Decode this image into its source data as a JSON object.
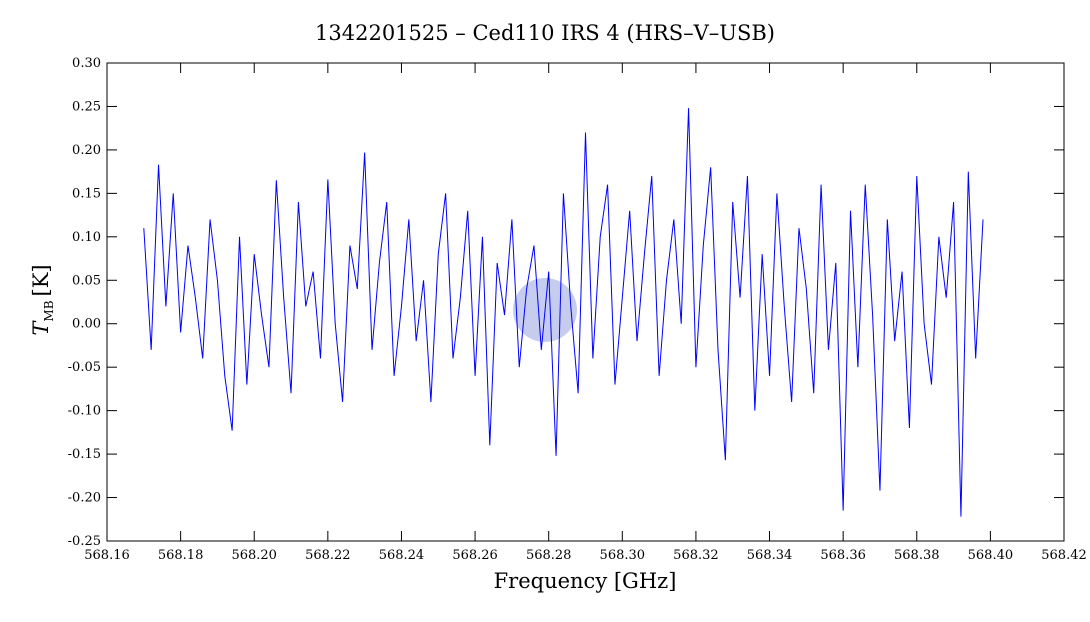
{
  "chart_data": {
    "type": "line",
    "title": "1342201525 – Ced110 IRS 4 (HRS–V–USB)",
    "xlabel": "Frequency [GHz]",
    "ylabel": {
      "symbol": "T",
      "subscript": "MB",
      "unit": "[K]"
    },
    "xlim": [
      568.16,
      568.42
    ],
    "ylim": [
      -0.25,
      0.3
    ],
    "xticks": [
      568.16,
      568.18,
      {
        "value": 568.2,
        "label": "568.20"
      },
      568.22,
      568.24,
      568.26,
      568.28,
      {
        "value": 568.3,
        "label": "568.30"
      },
      568.32,
      568.34,
      568.36,
      568.38,
      {
        "value": 568.4,
        "label": "568.40"
      },
      568.42
    ],
    "yticks": [
      -0.25,
      {
        "value": -0.2,
        "label": "-0.20"
      },
      -0.15,
      {
        "value": -0.1,
        "label": "-0.10"
      },
      -0.05,
      {
        "value": 0,
        "label": "0.00"
      },
      0.05,
      {
        "value": 0.1,
        "label": "0.10"
      },
      0.15,
      {
        "value": 0.2,
        "label": "0.20"
      },
      0.25,
      {
        "value": 0.3,
        "label": "0.30"
      }
    ],
    "x": [
      568.17,
      568.172,
      568.174,
      568.176,
      568.178,
      568.18,
      568.182,
      568.184,
      568.186,
      568.188,
      568.19,
      568.192,
      568.194,
      568.196,
      568.198,
      568.2,
      568.202,
      568.204,
      568.206,
      568.208,
      568.21,
      568.212,
      568.214,
      568.216,
      568.218,
      568.22,
      568.222,
      568.224,
      568.226,
      568.228,
      568.23,
      568.232,
      568.234,
      568.236,
      568.238,
      568.24,
      568.242,
      568.244,
      568.246,
      568.248,
      568.25,
      568.252,
      568.254,
      568.256,
      568.258,
      568.26,
      568.262,
      568.264,
      568.266,
      568.268,
      568.27,
      568.272,
      568.274,
      568.276,
      568.278,
      568.28,
      568.282,
      568.284,
      568.286,
      568.288,
      568.29,
      568.292,
      568.294,
      568.296,
      568.298,
      568.3,
      568.302,
      568.304,
      568.306,
      568.308,
      568.31,
      568.312,
      568.314,
      568.316,
      568.318,
      568.32,
      568.322,
      568.324,
      568.326,
      568.328,
      568.33,
      568.332,
      568.334,
      568.336,
      568.338,
      568.34,
      568.342,
      568.344,
      568.346,
      568.348,
      568.35,
      568.352,
      568.354,
      568.356,
      568.358,
      568.36,
      568.362,
      568.364,
      568.366,
      568.368,
      568.37,
      568.372,
      568.374,
      568.376,
      568.378,
      568.38,
      568.382,
      568.384,
      568.386,
      568.388,
      568.39,
      568.392,
      568.394,
      568.396,
      568.398
    ],
    "series": [
      {
        "color": "#0000ff",
        "values": [
          0.11,
          -0.03,
          0.183,
          0.02,
          0.15,
          -0.01,
          0.09,
          0.03,
          -0.04,
          0.12,
          0.05,
          -0.06,
          -0.123,
          0.1,
          -0.07,
          0.08,
          0.01,
          -0.05,
          0.165,
          0.03,
          -0.08,
          0.14,
          0.02,
          0.06,
          -0.04,
          0.166,
          0.0,
          -0.09,
          0.09,
          0.04,
          0.197,
          -0.03,
          0.07,
          0.14,
          -0.06,
          0.02,
          0.12,
          -0.02,
          0.05,
          -0.09,
          0.08,
          0.15,
          -0.04,
          0.03,
          0.13,
          -0.06,
          0.1,
          -0.14,
          0.07,
          0.01,
          0.12,
          -0.05,
          0.04,
          0.09,
          -0.03,
          0.06,
          -0.152,
          0.15,
          0.02,
          -0.08,
          0.22,
          -0.04,
          0.1,
          0.16,
          -0.07,
          0.03,
          0.13,
          -0.02,
          0.08,
          0.17,
          -0.06,
          0.05,
          0.12,
          0.0,
          0.248,
          -0.05,
          0.09,
          0.18,
          -0.03,
          -0.157,
          0.14,
          0.03,
          0.17,
          -0.1,
          0.08,
          -0.06,
          0.15,
          0.02,
          -0.09,
          0.11,
          0.04,
          -0.08,
          0.16,
          -0.03,
          0.07,
          -0.215,
          0.13,
          -0.05,
          0.16,
          0.01,
          -0.192,
          0.12,
          -0.02,
          0.06,
          -0.12,
          0.17,
          0.0,
          -0.07,
          0.1,
          0.03,
          0.14,
          -0.222,
          0.175,
          -0.04,
          0.12
        ]
      }
    ]
  }
}
